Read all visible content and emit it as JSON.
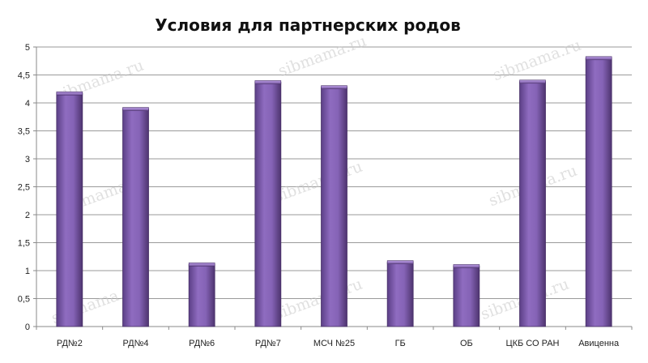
{
  "chart_data": {
    "type": "bar",
    "title": "Условия для партнерских родов",
    "categories": [
      "РД№2",
      "РД№4",
      "РД№6",
      "РД№7",
      "МСЧ №25",
      "ГБ",
      "ОБ",
      "ЦКБ СО РАН",
      "Авиценна"
    ],
    "values": [
      4.17,
      3.89,
      1.11,
      4.37,
      4.28,
      1.15,
      1.08,
      4.38,
      4.8
    ],
    "xlabel": "",
    "ylabel": "",
    "ylim": [
      0,
      5
    ],
    "yticks": [
      "0",
      "0,5",
      "1",
      "1,5",
      "2",
      "2,5",
      "3",
      "3,5",
      "4",
      "4,5",
      "5"
    ],
    "grid": "horizontal",
    "legend": "none",
    "bar_color": "#7b5aa6",
    "watermark": "sibmama.ru"
  }
}
